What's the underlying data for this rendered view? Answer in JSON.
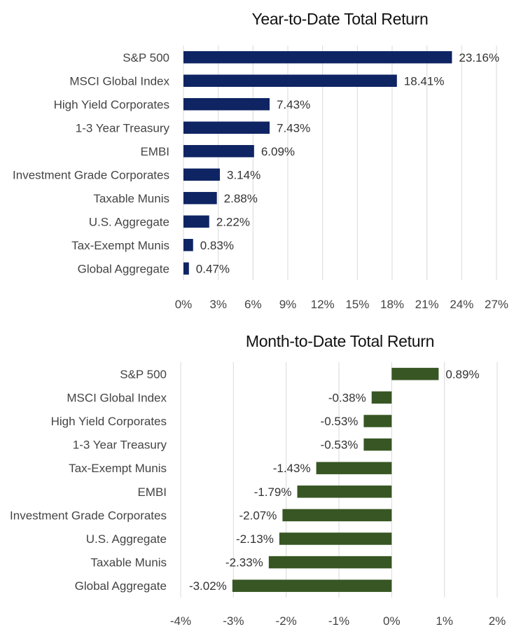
{
  "chart_data": [
    {
      "type": "bar",
      "orientation": "horizontal",
      "title": "Year-to-Date Total Return",
      "categories": [
        "S&P 500",
        "MSCI Global Index",
        "High Yield Corporates",
        "1-3 Year Treasury",
        "EMBI",
        "Investment Grade Corporates",
        "Taxable Munis",
        "U.S. Aggregate",
        "Tax-Exempt Munis",
        "Global Aggregate"
      ],
      "values": [
        23.16,
        18.41,
        7.43,
        7.43,
        6.09,
        3.14,
        2.88,
        2.22,
        0.83,
        0.47
      ],
      "value_labels": [
        "23.16%",
        "18.41%",
        "7.43%",
        "7.43%",
        "6.09%",
        "3.14%",
        "2.88%",
        "2.22%",
        "0.83%",
        "0.47%"
      ],
      "xlim": [
        0,
        27
      ],
      "ticks": [
        0,
        3,
        6,
        9,
        12,
        15,
        18,
        21,
        24,
        27
      ],
      "tick_labels": [
        "0%",
        "3%",
        "6%",
        "9%",
        "12%",
        "15%",
        "18%",
        "21%",
        "24%",
        "27%"
      ],
      "grid": true,
      "color": "#0e2463"
    },
    {
      "type": "bar",
      "orientation": "horizontal",
      "title": "Month-to-Date Total Return",
      "categories": [
        "S&P 500",
        "MSCI Global Index",
        "High Yield Corporates",
        "1-3 Year Treasury",
        "Tax-Exempt Munis",
        "EMBI",
        "Investment Grade Corporates",
        "U.S. Aggregate",
        "Taxable Munis",
        "Global Aggregate"
      ],
      "values": [
        0.89,
        -0.38,
        -0.53,
        -0.53,
        -1.43,
        -1.79,
        -2.07,
        -2.13,
        -2.33,
        -3.02
      ],
      "value_labels": [
        "0.89%",
        "-0.38%",
        "-0.53%",
        "-0.53%",
        "-1.43%",
        "-1.79%",
        "-2.07%",
        "-2.13%",
        "-2.33%",
        "-3.02%"
      ],
      "xlim": [
        -4,
        2
      ],
      "ticks": [
        -4,
        -3,
        -2,
        -1,
        0,
        1,
        2
      ],
      "tick_labels": [
        "-4%",
        "-3%",
        "-2%",
        "-1%",
        "0%",
        "1%",
        "2%"
      ],
      "grid": true,
      "color": "#375623"
    }
  ]
}
